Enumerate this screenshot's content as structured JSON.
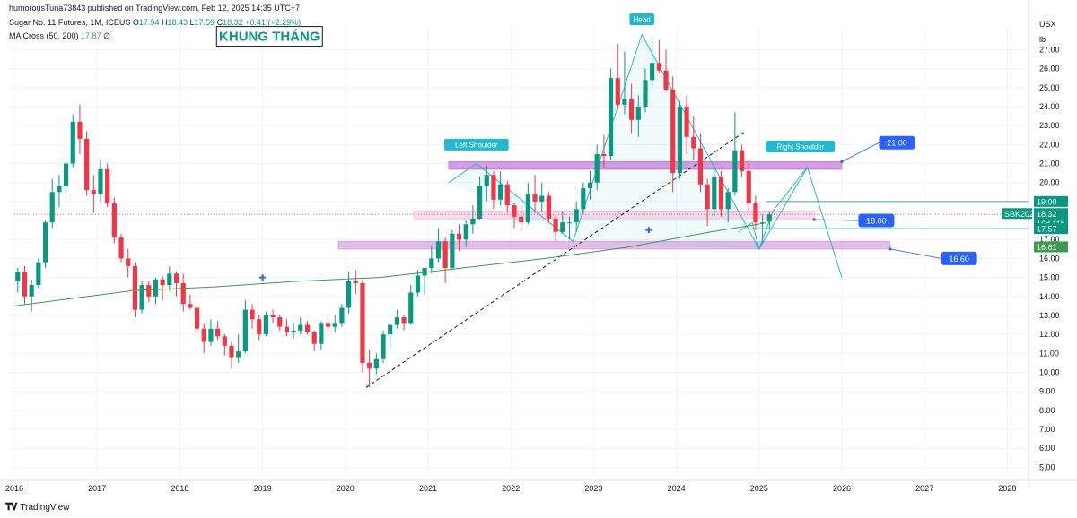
{
  "header": {
    "publisher": "humorousTuna73843 published on TradingView.com, Feb 12, 2025 14:35 UTC+7",
    "symbol": "Sugar No. 11 Futures, 1M, ICEUS",
    "o_label": "O",
    "o": "17.94",
    "h_label": "H",
    "h": "18.43",
    "l_label": "L",
    "l": "17.59",
    "c_label": "C",
    "c": "18.32",
    "change": "+0.41 (+2.29%)",
    "ma_label": "MA Cross (50, 200)",
    "ma_value": "17.87",
    "ma_extra": "∅"
  },
  "units": {
    "currency": "USX",
    "measure": "lb"
  },
  "footer": {
    "brand": "TradingView"
  },
  "colors": {
    "up": "#089981",
    "down": "#f23645",
    "ma": "#3d9a50",
    "pattern": "#22b8cf",
    "zone": "#c77dd7",
    "label_blue": "#2962ff"
  },
  "chart_data": {
    "type": "candlestick",
    "x_axis": {
      "ticks": [
        "2016",
        "2017",
        "2018",
        "2019",
        "2020",
        "2021",
        "2022",
        "2023",
        "2024",
        "2025",
        "2026",
        "2027",
        "2028"
      ]
    },
    "y_axis": {
      "ylim": [
        4.5,
        28.2
      ],
      "ticks": [
        "5.00",
        "6.00",
        "7.00",
        "8.00",
        "9.00",
        "10.00",
        "11.00",
        "12.00",
        "13.00",
        "14.00",
        "15.00",
        "16.00",
        "17.00",
        "18.00",
        "19.00",
        "20.00",
        "21.00",
        "22.00",
        "23.00",
        "24.00",
        "25.00",
        "26.00",
        "27.00"
      ]
    },
    "candles": [
      [
        "2016-01",
        14.8,
        15.5,
        14.2,
        15.3
      ],
      [
        "2016-02",
        15.3,
        15.6,
        13.6,
        14.0
      ],
      [
        "2016-03",
        14.0,
        14.9,
        13.2,
        14.6
      ],
      [
        "2016-04",
        14.6,
        16.0,
        14.4,
        15.8
      ],
      [
        "2016-05",
        15.8,
        18.0,
        15.5,
        17.9
      ],
      [
        "2016-06",
        17.9,
        20.2,
        17.6,
        19.5
      ],
      [
        "2016-07",
        19.5,
        20.4,
        18.7,
        19.8
      ],
      [
        "2016-08",
        19.8,
        21.3,
        19.3,
        21.0
      ],
      [
        "2016-09",
        21.0,
        23.6,
        20.8,
        23.2
      ],
      [
        "2016-10",
        23.2,
        24.1,
        21.5,
        22.3
      ],
      [
        "2016-11",
        22.3,
        22.7,
        19.3,
        19.6
      ],
      [
        "2016-12",
        19.6,
        20.4,
        18.4,
        19.4
      ],
      [
        "2017-01",
        19.4,
        21.2,
        19.0,
        20.7
      ],
      [
        "2017-02",
        20.7,
        21.0,
        18.7,
        18.9
      ],
      [
        "2017-03",
        18.9,
        19.2,
        16.8,
        17.1
      ],
      [
        "2017-04",
        17.1,
        17.3,
        15.8,
        16.0
      ],
      [
        "2017-05",
        16.0,
        16.5,
        15.0,
        15.6
      ],
      [
        "2017-06",
        15.6,
        15.8,
        12.9,
        13.3
      ],
      [
        "2017-07",
        13.3,
        14.8,
        13.1,
        14.6
      ],
      [
        "2017-08",
        14.6,
        14.8,
        13.7,
        14.0
      ],
      [
        "2017-09",
        14.0,
        15.0,
        13.6,
        14.9
      ],
      [
        "2017-10",
        14.9,
        15.1,
        13.8,
        14.6
      ],
      [
        "2017-11",
        14.6,
        15.6,
        14.3,
        15.2
      ],
      [
        "2017-12",
        15.2,
        15.3,
        14.0,
        14.7
      ],
      [
        "2018-01",
        14.7,
        15.2,
        13.2,
        13.6
      ],
      [
        "2018-02",
        13.6,
        14.1,
        13.3,
        13.4
      ],
      [
        "2018-03",
        13.4,
        13.5,
        12.0,
        12.3
      ],
      [
        "2018-04",
        12.3,
        12.6,
        11.0,
        11.6
      ],
      [
        "2018-05",
        11.6,
        12.8,
        11.4,
        12.3
      ],
      [
        "2018-06",
        12.3,
        12.7,
        11.7,
        11.9
      ],
      [
        "2018-07",
        11.9,
        12.0,
        10.9,
        11.4
      ],
      [
        "2018-08",
        11.4,
        11.6,
        10.2,
        10.8
      ],
      [
        "2018-09",
        10.8,
        12.0,
        10.5,
        11.1
      ],
      [
        "2018-10",
        11.1,
        13.8,
        11.0,
        13.3
      ],
      [
        "2018-11",
        13.3,
        13.6,
        12.3,
        12.8
      ],
      [
        "2018-12",
        12.8,
        13.0,
        11.7,
        12.0
      ],
      [
        "2019-01",
        12.0,
        13.2,
        11.9,
        13.0
      ],
      [
        "2019-02",
        13.0,
        13.3,
        12.6,
        12.9
      ],
      [
        "2019-03",
        12.9,
        13.0,
        12.2,
        12.4
      ],
      [
        "2019-04",
        12.4,
        12.8,
        11.9,
        12.1
      ],
      [
        "2019-05",
        12.1,
        12.6,
        11.8,
        12.2
      ],
      [
        "2019-06",
        12.2,
        12.9,
        12.0,
        12.5
      ],
      [
        "2019-07",
        12.5,
        12.7,
        12.0,
        12.1
      ],
      [
        "2019-08",
        12.1,
        12.2,
        11.1,
        11.5
      ],
      [
        "2019-09",
        11.5,
        12.7,
        11.2,
        12.6
      ],
      [
        "2019-10",
        12.6,
        12.9,
        12.2,
        12.4
      ],
      [
        "2019-11",
        12.4,
        13.0,
        12.1,
        12.6
      ],
      [
        "2019-12",
        12.6,
        13.6,
        12.4,
        13.4
      ],
      [
        "2020-01",
        13.4,
        15.3,
        13.1,
        14.8
      ],
      [
        "2020-02",
        14.8,
        15.4,
        14.1,
        14.7
      ],
      [
        "2020-03",
        14.7,
        14.9,
        10.0,
        10.5
      ],
      [
        "2020-04",
        10.5,
        11.2,
        9.2,
        10.2
      ],
      [
        "2020-05",
        10.2,
        11.0,
        9.9,
        10.7
      ],
      [
        "2020-06",
        10.7,
        12.2,
        10.5,
        12.0
      ],
      [
        "2020-07",
        12.0,
        12.5,
        11.3,
        12.5
      ],
      [
        "2020-08",
        12.5,
        13.3,
        12.3,
        12.9
      ],
      [
        "2020-09",
        12.9,
        13.0,
        12.2,
        12.6
      ],
      [
        "2020-10",
        12.6,
        14.6,
        12.5,
        14.2
      ],
      [
        "2020-11",
        14.2,
        15.4,
        14.0,
        15.1
      ],
      [
        "2020-12",
        15.1,
        15.4,
        14.1,
        15.5
      ],
      [
        "2021-01",
        15.5,
        16.7,
        15.2,
        16.0
      ],
      [
        "2021-02",
        16.0,
        17.6,
        15.8,
        16.9
      ],
      [
        "2021-03",
        16.9,
        17.1,
        14.7,
        15.5
      ],
      [
        "2021-04",
        15.5,
        17.5,
        15.4,
        17.3
      ],
      [
        "2021-05",
        17.3,
        17.8,
        16.4,
        17.0
      ],
      [
        "2021-06",
        17.0,
        18.0,
        16.6,
        17.8
      ],
      [
        "2021-07",
        17.8,
        18.8,
        17.3,
        18.1
      ],
      [
        "2021-08",
        18.1,
        20.3,
        18.0,
        19.8
      ],
      [
        "2021-09",
        19.8,
        20.9,
        19.0,
        20.4
      ],
      [
        "2021-10",
        20.4,
        20.6,
        18.6,
        19.1
      ],
      [
        "2021-11",
        19.1,
        20.6,
        18.8,
        19.9
      ],
      [
        "2021-12",
        19.9,
        20.1,
        18.4,
        18.8
      ],
      [
        "2022-01",
        18.8,
        18.9,
        17.6,
        18.2
      ],
      [
        "2022-02",
        18.2,
        18.8,
        17.5,
        17.9
      ],
      [
        "2022-03",
        17.9,
        20.0,
        17.8,
        19.4
      ],
      [
        "2022-04",
        19.4,
        20.4,
        18.4,
        19.0
      ],
      [
        "2022-05",
        19.0,
        20.0,
        18.5,
        19.3
      ],
      [
        "2022-06",
        19.3,
        19.5,
        17.9,
        18.1
      ],
      [
        "2022-07",
        18.1,
        18.3,
        16.9,
        17.4
      ],
      [
        "2022-08",
        17.4,
        18.5,
        17.3,
        17.9
      ],
      [
        "2022-09",
        17.9,
        18.2,
        17.0,
        17.9
      ],
      [
        "2022-10",
        17.9,
        19.0,
        17.4,
        18.6
      ],
      [
        "2022-11",
        18.6,
        20.0,
        18.3,
        19.7
      ],
      [
        "2022-12",
        19.7,
        20.6,
        19.1,
        20.0
      ],
      [
        "2023-01",
        20.0,
        22.0,
        19.6,
        21.5
      ],
      [
        "2023-02",
        21.5,
        22.5,
        20.8,
        21.4
      ],
      [
        "2023-03",
        21.4,
        26.0,
        21.2,
        25.5
      ],
      [
        "2023-04",
        25.5,
        27.3,
        23.8,
        24.1
      ],
      [
        "2023-05",
        24.1,
        26.9,
        23.6,
        24.4
      ],
      [
        "2023-06",
        24.4,
        25.2,
        22.6,
        23.3
      ],
      [
        "2023-07",
        23.3,
        24.6,
        22.4,
        24.0
      ],
      [
        "2023-08",
        24.0,
        26.0,
        23.7,
        25.4
      ],
      [
        "2023-09",
        25.4,
        27.6,
        25.0,
        26.3
      ],
      [
        "2023-10",
        26.3,
        27.5,
        25.8,
        25.9
      ],
      [
        "2023-11",
        25.9,
        27.0,
        24.8,
        24.9
      ],
      [
        "2023-12",
        24.9,
        25.6,
        19.5,
        20.5
      ],
      [
        "2024-01",
        20.5,
        24.3,
        20.2,
        24.0
      ],
      [
        "2024-02",
        24.0,
        24.6,
        21.5,
        22.4
      ],
      [
        "2024-03",
        22.4,
        23.5,
        21.2,
        21.8
      ],
      [
        "2024-04",
        21.8,
        22.6,
        19.5,
        19.9
      ],
      [
        "2024-05",
        19.9,
        20.2,
        17.7,
        18.6
      ],
      [
        "2024-06",
        18.6,
        20.9,
        18.2,
        20.3
      ],
      [
        "2024-07",
        20.3,
        20.6,
        18.2,
        18.6
      ],
      [
        "2024-08",
        18.6,
        19.7,
        17.9,
        19.5
      ],
      [
        "2024-09",
        19.5,
        23.7,
        19.3,
        21.7
      ],
      [
        "2024-10",
        21.7,
        22.0,
        20.3,
        20.6
      ],
      [
        "2024-11",
        20.6,
        21.2,
        18.5,
        18.9
      ],
      [
        "2024-12",
        18.9,
        19.3,
        17.5,
        17.9
      ],
      [
        "2025-01",
        17.9,
        18.3,
        16.8,
        17.9
      ],
      [
        "2025-02",
        17.94,
        18.43,
        17.59,
        18.32
      ]
    ],
    "ma_200": [
      [
        "2016-01",
        13.5
      ],
      [
        "2017-06",
        14.3
      ],
      [
        "2018-06",
        14.5
      ],
      [
        "2019-06",
        14.8
      ],
      [
        "2020-06",
        15.0
      ],
      [
        "2021-06",
        15.5
      ],
      [
        "2022-06",
        16.0
      ],
      [
        "2023-06",
        16.6
      ],
      [
        "2024-06",
        17.4
      ],
      [
        "2025-02",
        17.87
      ]
    ],
    "price_labels": [
      {
        "text": "19.00",
        "value": 19.0,
        "color": "#089981"
      },
      {
        "text": "SBK2025",
        "value": 18.32,
        "color": "#089981"
      },
      {
        "text": "18.32",
        "value": 18.32,
        "color": "#089981"
      },
      {
        "text": "16d 11h",
        "value": 18.32,
        "color": "#089981"
      },
      {
        "text": "17.57",
        "value": 17.57,
        "color": "#089981"
      },
      {
        "text": "16.61",
        "value": 16.61,
        "color": "#3d9a50"
      }
    ],
    "horizontal_lines": [
      {
        "value": 19.0,
        "color": "#089981",
        "style": "solid",
        "from": "2025-02",
        "to": "2028-06"
      },
      {
        "value": 17.57,
        "color": "#089981",
        "style": "solid",
        "from": "2024-12",
        "to": "2028-06"
      },
      {
        "value": 18.32,
        "color": "#f23645",
        "style": "dotted",
        "from": "2016-01",
        "to": "2028-06"
      }
    ],
    "zones": [
      {
        "from": "2021-04",
        "to": "2026-01",
        "low": 20.7,
        "high": 21.1,
        "color": "#c77dd7",
        "opacity": 0.75
      },
      {
        "from": "2020-11",
        "to": "2025-09",
        "low": 18.1,
        "high": 18.5,
        "color": "#f6c2e0",
        "opacity": 0.55
      },
      {
        "from": "2019-12",
        "to": "2026-08",
        "low": 16.5,
        "high": 16.9,
        "color": "#d9a6e5",
        "opacity": 0.75
      }
    ],
    "annotations": [
      {
        "text": "KHUNG THÁNG",
        "kind": "title-box",
        "x": "2019-02",
        "y": 27.7
      },
      {
        "text": "Head",
        "kind": "pattern-label",
        "x": "2023-08",
        "y": 28.6
      },
      {
        "text": "Left Shoulder",
        "kind": "pattern-label",
        "x": "2021-08",
        "y": 22.0
      },
      {
        "text": "Right Shoulder",
        "kind": "pattern-label",
        "x": "2025-07",
        "y": 21.9
      },
      {
        "text": "21.00",
        "kind": "target",
        "x": "2026-09",
        "y": 22.1,
        "pointer": [
          "2026-01",
          21.1
        ]
      },
      {
        "text": "18.00",
        "kind": "target",
        "x": "2026-06",
        "y": 18.0,
        "pointer": [
          "2025-09",
          18.05
        ]
      },
      {
        "text": "16.60",
        "kind": "target",
        "x": "2027-06",
        "y": 16.0,
        "pointer": [
          "2026-08",
          16.5
        ]
      }
    ],
    "hs_pattern": [
      [
        "2021-04",
        20.0
      ],
      [
        "2021-08",
        21.0
      ],
      [
        "2022-10",
        16.9
      ],
      [
        "2023-08",
        27.8
      ],
      [
        "2025-01",
        16.5
      ],
      [
        "2025-08",
        20.8
      ],
      [
        "2026-01",
        15.0
      ]
    ],
    "hs_triangles": [
      [
        [
          "2021-04",
          20.0
        ],
        [
          "2021-08",
          21.0
        ],
        [
          "2022-10",
          16.9
        ]
      ],
      [
        [
          "2022-10",
          16.9
        ],
        [
          "2023-08",
          27.8
        ],
        [
          "2025-01",
          16.5
        ]
      ]
    ],
    "extra_lines": [
      {
        "points": [
          [
            "2024-10",
            17.4
          ],
          [
            "2024-12",
            17.9
          ],
          [
            "2025-01",
            16.5
          ],
          [
            "2025-03",
            18.5
          ],
          [
            "2025-08",
            20.8
          ]
        ],
        "color": "#22b8cf"
      }
    ],
    "trendline": {
      "from": [
        "2020-04",
        9.2
      ],
      "to": [
        "2024-11",
        22.7
      ],
      "style": "dashed"
    },
    "markers": [
      {
        "x": "2019-01",
        "y": 15.0
      },
      {
        "x": "2023-09",
        "y": 17.5
      }
    ]
  }
}
